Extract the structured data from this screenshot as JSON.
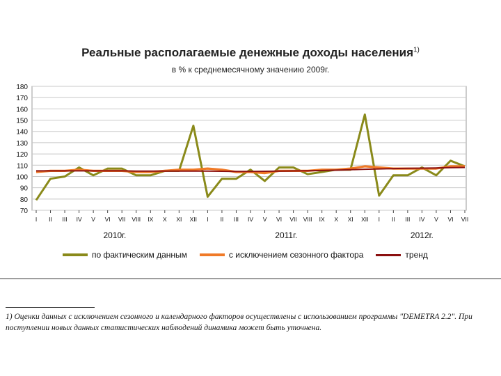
{
  "title": "Реальные располагаемые денежные доходы населения",
  "title_note": "1)",
  "subtitle": "в % к среднемесячному значению 2009г.",
  "footnote": "1) Оценки данных с исключением сезонного и календарного факторов осуществлены с использованием программы \"DEMETRA 2.2\". При поступлении новых данных статистических наблюдений динамика может быть уточнена.",
  "colors": {
    "actual": "#8a8a1a",
    "seasonal": "#f07a28",
    "trend": "#8b1010",
    "grid": "#c8c8c8",
    "axis": "#444444"
  },
  "chart_data": {
    "type": "line",
    "title": "Реальные располагаемые денежные доходы населения",
    "subtitle": "в % к среднемесячному значению 2009г.",
    "ylim": [
      70,
      180
    ],
    "yticks": [
      70,
      80,
      90,
      100,
      110,
      120,
      130,
      140,
      150,
      160,
      170,
      180
    ],
    "grid": true,
    "legend_position": "bottom",
    "categories": [
      "I",
      "II",
      "III",
      "IV",
      "V",
      "VI",
      "VII",
      "VIII",
      "IX",
      "X",
      "XI",
      "XII",
      "I",
      "II",
      "III",
      "IV",
      "V",
      "VI",
      "VII",
      "VIII",
      "IX",
      "X",
      "XI",
      "XII",
      "I",
      "II",
      "III",
      "IV",
      "V",
      "VI",
      "VII"
    ],
    "year_groups": [
      {
        "label": "2010г.",
        "start": 0,
        "end": 11
      },
      {
        "label": "2011г.",
        "start": 12,
        "end": 23
      },
      {
        "label": "2012г.",
        "start": 24,
        "end": 30
      }
    ],
    "series": [
      {
        "name": "по фактическим данным",
        "key": "actual",
        "values": [
          79,
          98,
          100,
          108,
          101,
          107,
          107,
          101,
          101,
          105,
          105,
          145,
          82,
          98,
          98,
          106,
          96,
          108,
          108,
          102,
          104,
          106,
          106,
          155,
          83,
          101,
          101,
          108,
          101,
          114,
          109
        ]
      },
      {
        "name": "с исключением сезонного фактора",
        "key": "seasonal",
        "values": [
          104,
          105,
          105,
          106,
          105,
          105,
          105,
          104,
          104,
          105,
          106,
          106,
          107,
          106,
          104,
          104,
          103,
          105,
          105,
          105,
          106,
          106,
          107,
          109,
          108,
          107,
          107,
          107,
          107,
          109,
          109
        ]
      },
      {
        "name": "тренд",
        "key": "trend",
        "values": [
          105,
          105,
          105,
          105,
          105,
          105,
          105,
          104.8,
          104.7,
          104.7,
          104.7,
          104.8,
          104.7,
          104.6,
          104.5,
          104.5,
          104.6,
          104.7,
          104.9,
          105.1,
          105.3,
          105.6,
          106,
          106.4,
          106.7,
          107,
          107.2,
          107.4,
          107.6,
          107.8,
          108
        ]
      }
    ]
  }
}
